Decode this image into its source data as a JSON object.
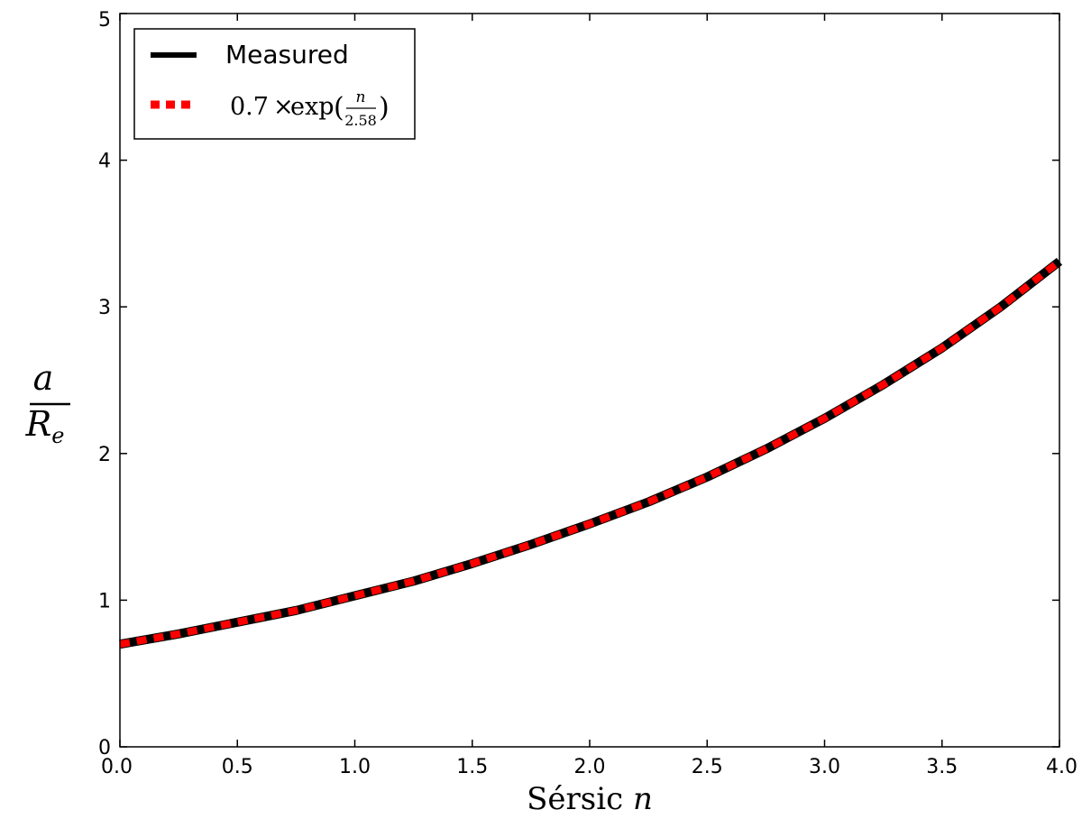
{
  "chart_data": {
    "type": "line",
    "title": "",
    "xlabel_prefix": "Sérsic",
    "xlabel_var": "n",
    "ylabel_num": "a",
    "ylabel_den_main": "R",
    "ylabel_den_sub": "e",
    "xlim": [
      0.0,
      4.0
    ],
    "ylim": [
      0,
      5
    ],
    "x_ticks": [
      "0.0",
      "0.5",
      "1.0",
      "1.5",
      "2.0",
      "2.5",
      "3.0",
      "3.5",
      "4.0"
    ],
    "x_tick_values": [
      0.0,
      0.5,
      1.0,
      1.5,
      2.0,
      2.5,
      3.0,
      3.5,
      4.0
    ],
    "y_ticks": [
      "0",
      "1",
      "2",
      "3",
      "4",
      "5"
    ],
    "y_tick_values": [
      0,
      1,
      2,
      3,
      4,
      5
    ],
    "grid": false,
    "legend_position": "top-left",
    "series": [
      {
        "name": "Measured",
        "color": "#000000",
        "style": "solid",
        "x": [
          0.0,
          0.25,
          0.5,
          0.75,
          1.0,
          1.25,
          1.5,
          1.75,
          2.0,
          2.25,
          2.5,
          2.75,
          3.0,
          3.25,
          3.5,
          3.75,
          4.0
        ],
        "y": [
          0.7,
          0.77,
          0.85,
          0.93,
          1.03,
          1.13,
          1.25,
          1.38,
          1.52,
          1.67,
          1.84,
          2.03,
          2.24,
          2.47,
          2.72,
          3.0,
          3.31
        ]
      },
      {
        "name_parts": {
          "coef": "0.7",
          "times": "×",
          "func": "exp",
          "frac_num": "n",
          "frac_den": "2.58",
          "lparen": "(",
          "rparen": ")"
        },
        "color": "#ff0000",
        "style": "dashed",
        "x": [
          0.0,
          0.25,
          0.5,
          0.75,
          1.0,
          1.25,
          1.5,
          1.75,
          2.0,
          2.25,
          2.5,
          2.75,
          3.0,
          3.25,
          3.5,
          3.75,
          4.0
        ],
        "y": [
          0.7,
          0.77,
          0.85,
          0.93,
          1.03,
          1.13,
          1.25,
          1.38,
          1.52,
          1.67,
          1.84,
          2.03,
          2.24,
          2.47,
          2.72,
          3.0,
          3.31
        ]
      }
    ]
  }
}
